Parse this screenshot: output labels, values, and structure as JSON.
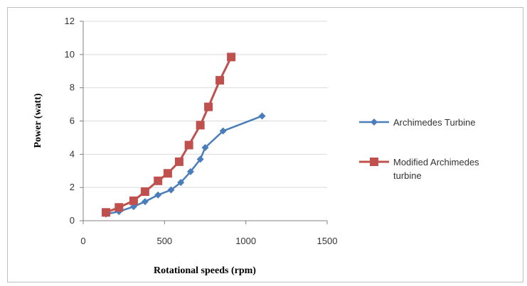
{
  "chart_data": {
    "type": "line",
    "xlabel": "Rotational speeds (rpm)",
    "ylabel": "Power (watt)",
    "xlim": [
      0,
      1500
    ],
    "ylim": [
      0,
      12
    ],
    "xticks": [
      0,
      500,
      1000,
      1500
    ],
    "yticks": [
      0,
      2,
      4,
      6,
      8,
      10,
      12
    ],
    "grid": "horizontal",
    "legend_position": "right",
    "series": [
      {
        "name": "Archimedes Turbine",
        "color": "#4a7ebb",
        "marker": "diamond",
        "points": [
          [
            140,
            0.4
          ],
          [
            220,
            0.55
          ],
          [
            310,
            0.85
          ],
          [
            380,
            1.15
          ],
          [
            460,
            1.55
          ],
          [
            540,
            1.85
          ],
          [
            600,
            2.3
          ],
          [
            660,
            2.95
          ],
          [
            720,
            3.7
          ],
          [
            750,
            4.4
          ],
          [
            860,
            5.4
          ],
          [
            1100,
            6.3
          ]
        ]
      },
      {
        "name": "Modified Archimedes turbine",
        "legend_lines": [
          "Modified Archimedes",
          "turbine"
        ],
        "color": "#c0504d",
        "marker": "square",
        "points": [
          [
            140,
            0.5
          ],
          [
            220,
            0.8
          ],
          [
            310,
            1.2
          ],
          [
            380,
            1.75
          ],
          [
            460,
            2.4
          ],
          [
            520,
            2.85
          ],
          [
            590,
            3.55
          ],
          [
            650,
            4.55
          ],
          [
            720,
            5.75
          ],
          [
            770,
            6.85
          ],
          [
            840,
            8.45
          ],
          [
            910,
            9.85
          ]
        ]
      }
    ]
  }
}
